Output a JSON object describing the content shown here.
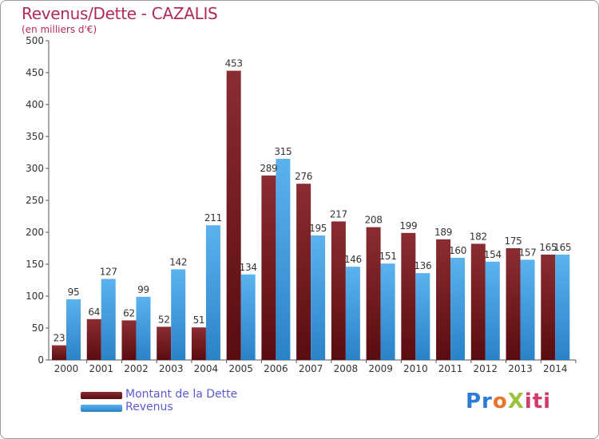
{
  "chart_data": {
    "type": "bar",
    "title": "Revenus/Dette - CAZALIS",
    "subtitle": "(en milliers d'€)",
    "categories": [
      "2000",
      "2001",
      "2002",
      "2003",
      "2004",
      "2005",
      "2006",
      "2007",
      "2008",
      "2009",
      "2010",
      "2011",
      "2012",
      "2013",
      "2014"
    ],
    "series": [
      {
        "name": "Montant de la Dette",
        "color": "#7a1e22",
        "values": [
          23,
          64,
          62,
          52,
          51,
          453,
          289,
          276,
          217,
          208,
          199,
          189,
          182,
          175,
          165
        ]
      },
      {
        "name": "Revenus",
        "color": "#3d9be0",
        "values": [
          95,
          127,
          99,
          142,
          211,
          134,
          315,
          195,
          146,
          151,
          136,
          160,
          154,
          157,
          165
        ]
      }
    ],
    "ylim": [
      0,
      500
    ],
    "yticks": [
      0,
      50,
      100,
      150,
      200,
      250,
      300,
      350,
      400,
      450,
      500
    ],
    "grid": false,
    "legend_position": "bottom-left"
  },
  "logo": {
    "text": "ProXiti",
    "parts": [
      "Pr",
      "o",
      "X",
      "iti"
    ]
  }
}
